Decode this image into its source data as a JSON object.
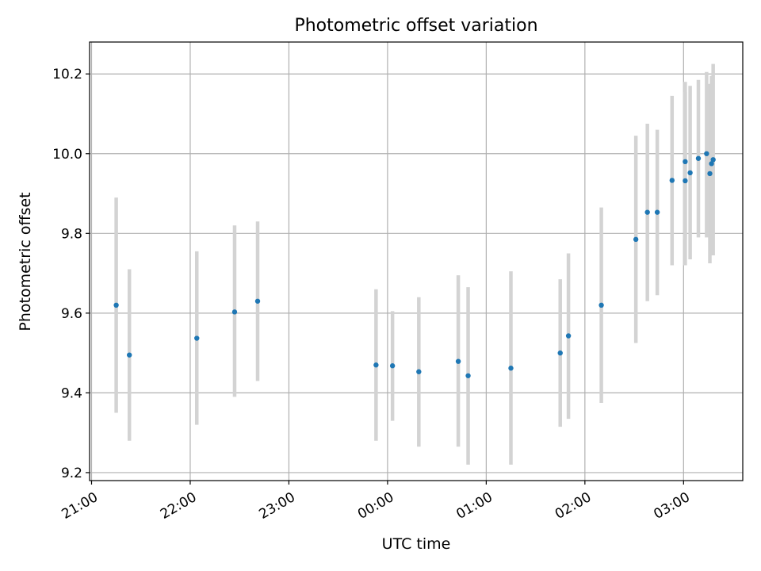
{
  "chart_data": {
    "type": "scatter",
    "title": "Photometric offset variation",
    "xlabel": "UTC time",
    "ylabel": "Photometric offset",
    "x_tick_labels": [
      "21:00",
      "22:00",
      "23:00",
      "00:00",
      "01:00",
      "02:00",
      "03:00"
    ],
    "y_tick_labels": [
      "9.2",
      "9.4",
      "9.6",
      "9.8",
      "10.0",
      "10.2"
    ],
    "x_ticks_hours": [
      21,
      22,
      23,
      24,
      25,
      26,
      27
    ],
    "y_ticks": [
      9.2,
      9.4,
      9.6,
      9.8,
      10.0,
      10.2
    ],
    "xlim_hours": [
      20.98,
      27.6
    ],
    "ylim": [
      9.18,
      10.28
    ],
    "grid": true,
    "colors": {
      "marker": "#1f77b4",
      "errorbar": "#d3d3d3",
      "grid": "#b0b0b0",
      "axes": "#000000"
    },
    "series": [
      {
        "points": [
          {
            "t": "21:15",
            "y": 9.62,
            "low": 9.35,
            "high": 9.89
          },
          {
            "t": "21:23",
            "y": 9.495,
            "low": 9.28,
            "high": 9.71
          },
          {
            "t": "22:04",
            "y": 9.537,
            "low": 9.32,
            "high": 9.755
          },
          {
            "t": "22:27",
            "y": 9.603,
            "low": 9.39,
            "high": 9.82
          },
          {
            "t": "22:41",
            "y": 9.63,
            "low": 9.43,
            "high": 9.83
          },
          {
            "t": "23:53",
            "y": 9.47,
            "low": 9.28,
            "high": 9.66
          },
          {
            "t": "00:03",
            "y": 9.468,
            "low": 9.33,
            "high": 9.605
          },
          {
            "t": "00:19",
            "y": 9.453,
            "low": 9.265,
            "high": 9.64
          },
          {
            "t": "00:43",
            "y": 9.479,
            "low": 9.265,
            "high": 9.695
          },
          {
            "t": "00:49",
            "y": 9.443,
            "low": 9.22,
            "high": 9.665
          },
          {
            "t": "01:15",
            "y": 9.462,
            "low": 9.22,
            "high": 9.705
          },
          {
            "t": "01:45",
            "y": 9.5,
            "low": 9.315,
            "high": 9.685
          },
          {
            "t": "01:50",
            "y": 9.543,
            "low": 9.335,
            "high": 9.75
          },
          {
            "t": "02:10",
            "y": 9.62,
            "low": 9.375,
            "high": 9.865
          },
          {
            "t": "02:31",
            "y": 9.785,
            "low": 9.525,
            "high": 10.045
          },
          {
            "t": "02:38",
            "y": 9.853,
            "low": 9.63,
            "high": 10.075
          },
          {
            "t": "02:44",
            "y": 9.853,
            "low": 9.645,
            "high": 10.06
          },
          {
            "t": "02:53",
            "y": 9.933,
            "low": 9.72,
            "high": 10.145
          },
          {
            "t": "03:01",
            "y": 9.98,
            "low": 9.785,
            "high": 10.18
          },
          {
            "t": "03:01",
            "y": 9.932,
            "low": 9.72,
            "high": 10.155
          },
          {
            "t": "03:04",
            "y": 9.952,
            "low": 9.735,
            "high": 10.17
          },
          {
            "t": "03:09",
            "y": 9.988,
            "low": 9.79,
            "high": 10.185
          },
          {
            "t": "03:14",
            "y": 10.0,
            "low": 9.79,
            "high": 10.205
          },
          {
            "t": "03:16",
            "y": 9.95,
            "low": 9.725,
            "high": 10.175
          },
          {
            "t": "03:17",
            "y": 9.975,
            "low": 9.755,
            "high": 10.195
          },
          {
            "t": "03:18",
            "y": 9.985,
            "low": 9.745,
            "high": 10.225
          }
        ]
      }
    ]
  }
}
